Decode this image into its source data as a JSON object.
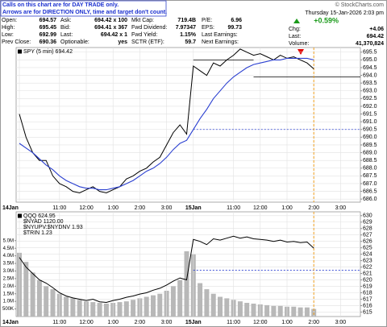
{
  "header": {
    "notice": [
      "Calls on this chart are for DAY TRADE only.",
      "Arrows are for DIRECTION ONLY, time and target don't count."
    ],
    "quote_rows": [
      [
        "Open:",
        "694.57",
        "Ask:",
        "694.42 x 100",
        "Mkt Cap:",
        "719.4B",
        "P/E:",
        "6.96"
      ],
      [
        "High:",
        "695.45",
        "Bid:",
        "694.41 x 367",
        "Fwd Dividend:",
        "7.97347",
        "EPS:",
        "99.73"
      ],
      [
        "Low:",
        "692.99",
        "Last:",
        "694.42 x 1",
        "Fwd Yield:",
        "1.15%",
        "Last Earnings:"
      ],
      [
        "Prev Close:",
        "690.36",
        "Optionable:",
        "yes",
        "SCTR (ETF):",
        "59.7",
        "Next Earnings:"
      ]
    ],
    "site": "© StockCharts.com",
    "date": "Thursday 15-Jan-2026 2:03 pm",
    "change_pct": "+0.59%",
    "chg_label": "Chg:",
    "chg": "+4.06",
    "last_label": "Last:",
    "last": "694.42",
    "volume_label": "Volume:",
    "volume": "41,370,824"
  },
  "chart_data": [
    {
      "type": "line",
      "categories": [
        "14Jan",
        null,
        null,
        null,
        null,
        null,
        "11:00",
        null,
        null,
        null,
        "12:00",
        null,
        null,
        null,
        "1:00",
        null,
        null,
        null,
        "2:00",
        null,
        null,
        null,
        "3:00",
        null,
        null,
        null,
        "15Jan",
        null,
        null,
        null,
        null,
        null,
        "11:00",
        null,
        null,
        null,
        "12:00",
        null,
        null,
        null,
        "1:00",
        null,
        null,
        null,
        "2:00",
        null,
        null,
        null,
        "3:00",
        null,
        null,
        null
      ],
      "series": [
        {
          "name": "SPY (5 min) 694.42",
          "color": "#000000",
          "values": [
            691.5,
            690.0,
            689.0,
            688.5,
            688.5,
            687.5,
            687.0,
            686.8,
            686.5,
            686.4,
            686.6,
            686.8,
            686.5,
            686.4,
            686.6,
            686.8,
            687.3,
            687.5,
            687.8,
            688.0,
            688.4,
            688.7,
            689.5,
            690.3,
            690.8,
            690.2,
            694.6,
            694.3,
            694.0,
            694.8,
            694.6,
            695.0,
            695.3,
            695.7,
            695.5,
            695.3,
            695.4,
            695.2,
            695.0,
            695.3,
            695.1,
            695.2,
            695.0,
            694.8,
            694.42,
            null,
            null,
            null,
            null,
            null,
            null,
            null
          ]
        },
        {
          "color": "#2a3fd0",
          "values": [
            689.6,
            689.3,
            689.0,
            688.6,
            688.2,
            687.9,
            687.5,
            687.2,
            687.0,
            686.8,
            686.7,
            686.7,
            686.6,
            686.6,
            686.7,
            686.8,
            687.0,
            687.2,
            687.5,
            687.8,
            688.0,
            688.3,
            688.7,
            689.2,
            689.6,
            689.8,
            690.5,
            691.2,
            691.8,
            692.5,
            693.0,
            693.5,
            693.9,
            694.2,
            694.5,
            694.7,
            694.8,
            694.9,
            695.0,
            695.0,
            695.1,
            695.1,
            695.1,
            695.1,
            695.0,
            null,
            null,
            null,
            null,
            null,
            null,
            null
          ]
        }
      ],
      "levels": [
        695.0,
        693.9
      ],
      "dashed_level": 690.5,
      "ylim": [
        685.8,
        695.8
      ],
      "yticks": [
        {
          "value": 686.0,
          "label": "686.0"
        },
        {
          "value": 686.5,
          "label": "686.5"
        },
        {
          "value": 687.0,
          "label": "687.0"
        },
        {
          "value": 687.5,
          "label": "687.5"
        },
        {
          "value": 688.0,
          "label": "688.0"
        },
        {
          "value": 688.5,
          "label": "688.5"
        },
        {
          "value": 689.0,
          "label": "689.0"
        },
        {
          "value": 689.5,
          "label": "689.5"
        },
        {
          "value": 690.0,
          "label": "690.0"
        },
        {
          "value": 690.5,
          "label": "690.5"
        },
        {
          "value": 691.0,
          "label": "691.0"
        },
        {
          "value": 691.5,
          "label": "691.5"
        },
        {
          "value": 692.0,
          "label": "692.0"
        },
        {
          "value": 692.5,
          "label": "692.5"
        },
        {
          "value": 693.0,
          "label": "693.0"
        },
        {
          "value": 693.5,
          "label": "693.5"
        },
        {
          "value": 694.0,
          "label": "694.0"
        },
        {
          "value": 694.5,
          "label": "694.5"
        },
        {
          "value": 695.0,
          "label": "695.0"
        },
        {
          "value": 695.5,
          "label": "695.5"
        }
      ],
      "grid": true
    },
    {
      "type": "line",
      "categories": [
        "14Jan",
        null,
        null,
        null,
        null,
        null,
        "11:00",
        null,
        null,
        null,
        "12:00",
        null,
        null,
        null,
        "1:00",
        null,
        null,
        null,
        "2:00",
        null,
        null,
        null,
        "3:00",
        null,
        null,
        null,
        "15Jan",
        null,
        null,
        null,
        null,
        null,
        "11:00",
        null,
        null,
        null,
        "12:00",
        null,
        null,
        null,
        "1:00",
        null,
        null,
        null,
        "2:00",
        null,
        null,
        null,
        "3:00",
        null,
        null,
        null
      ],
      "series": [
        {
          "name": "QQQ 624.95",
          "color": "#000000",
          "values": [
            623.5,
            622.0,
            621.0,
            620.0,
            619.5,
            618.8,
            618.0,
            617.5,
            617.2,
            617.0,
            616.8,
            617.0,
            616.6,
            616.5,
            616.8,
            617.0,
            617.3,
            617.5,
            617.8,
            618.0,
            618.4,
            618.7,
            619.2,
            619.8,
            620.3,
            620.0,
            626.3,
            626.0,
            625.5,
            626.4,
            626.2,
            626.5,
            626.8,
            626.5,
            626.7,
            626.4,
            626.3,
            626.2,
            626.0,
            626.2,
            625.9,
            626.0,
            625.8,
            625.9,
            624.95,
            null,
            null,
            null,
            null,
            null,
            null,
            null
          ]
        },
        {
          "type": "bar",
          "axis": "y2",
          "color": "#b8b8b8",
          "values": [
            4200000,
            3600000,
            2900000,
            2400000,
            2000000,
            1800000,
            1500000,
            1300000,
            1200000,
            1100000,
            1000000,
            950000,
            900000,
            850000,
            900000,
            950000,
            1000000,
            1100000,
            1200000,
            1300000,
            1400000,
            1500000,
            1700000,
            2000000,
            2400000,
            4300000,
            4100000,
            2200000,
            1800000,
            1500000,
            1300000,
            1200000,
            1100000,
            1000000,
            900000,
            850000,
            800000,
            750000,
            700000,
            700000,
            650000,
            650000,
            600000,
            600000,
            500000,
            null,
            null,
            null,
            null,
            null,
            null,
            null
          ]
        }
      ],
      "indicators": [
        "$NYAD 1120.00",
        "$NYUPV:$NYDNV 1.93",
        "$TRIN 1.23"
      ],
      "dashed_level": 621.5,
      "ylim": [
        614.3,
        630.6
      ],
      "yticks": [
        615,
        616,
        617,
        618,
        619,
        620,
        621,
        622,
        623,
        624,
        625,
        626,
        627,
        628,
        629,
        630
      ],
      "y2lim": [
        0,
        6900000
      ],
      "y2ticks": [
        {
          "value": 500000,
          "label": "500K"
        },
        {
          "value": 1000000,
          "label": "1.0M"
        },
        {
          "value": 1500000,
          "label": "1.5M"
        },
        {
          "value": 2000000,
          "label": "2.0M"
        },
        {
          "value": 2500000,
          "label": "2.5M"
        },
        {
          "value": 3000000,
          "label": "3.0M"
        },
        {
          "value": 3500000,
          "label": "3.5M"
        },
        {
          "value": 4000000,
          "label": "4.0M"
        },
        {
          "value": 4500000,
          "label": "4.5M"
        },
        {
          "value": 5000000,
          "label": "5.0M"
        }
      ],
      "grid": true
    }
  ]
}
